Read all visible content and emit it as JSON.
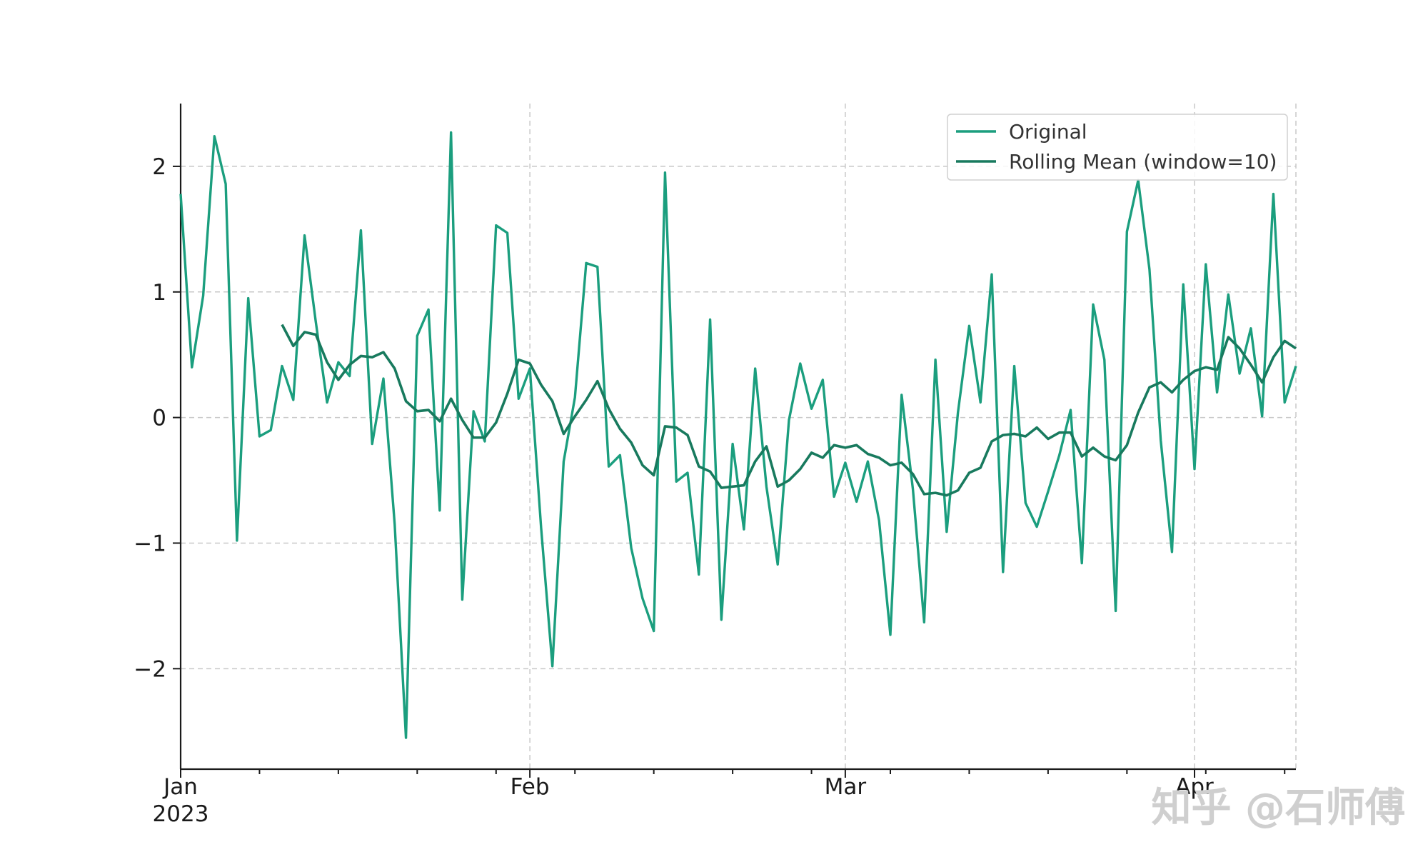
{
  "chart_data": {
    "type": "line",
    "x_start": "2023-01-01",
    "x_frequency": "daily",
    "ylim": [
      -2.8,
      2.5
    ],
    "yticks": [
      -2,
      -1,
      0,
      1,
      2
    ],
    "ytick_labels": [
      "−2",
      "−1",
      "0",
      "1",
      "2"
    ],
    "xticks": [
      {
        "date": "2023-01-01",
        "label": "Jan",
        "sublabel": "2023"
      },
      {
        "date": "2023-02-01",
        "label": "Feb",
        "sublabel": ""
      },
      {
        "date": "2023-03-01",
        "label": "Mar",
        "sublabel": ""
      },
      {
        "date": "2023-04-01",
        "label": "Apr",
        "sublabel": ""
      }
    ],
    "grid": true,
    "legend_position": "top-right",
    "colors": {
      "original": "#1b9e7e",
      "rolling": "#187a5e"
    },
    "series": [
      {
        "name": "Original",
        "values": [
          1.78,
          0.4,
          0.97,
          2.24,
          1.86,
          -0.98,
          0.95,
          -0.15,
          -0.1,
          0.41,
          0.14,
          1.45,
          0.76,
          0.12,
          0.44,
          0.33,
          1.49,
          -0.21,
          0.31,
          -0.85,
          -2.55,
          0.65,
          0.86,
          -0.74,
          2.27,
          -1.45,
          0.05,
          -0.19,
          1.53,
          1.47,
          0.15,
          0.39,
          -0.88,
          -1.98,
          -0.35,
          0.16,
          1.23,
          1.2,
          -0.39,
          -0.3,
          -1.04,
          -1.44,
          -1.7,
          1.95,
          -0.51,
          -0.44,
          -1.25,
          0.78,
          -1.61,
          -0.21,
          -0.89,
          0.39,
          -0.55,
          -1.17,
          -0.02,
          0.43,
          0.07,
          0.3,
          -0.63,
          -0.36,
          -0.67,
          -0.35,
          -0.82,
          -1.73,
          0.18,
          -0.57,
          -1.63,
          0.46,
          -0.91,
          0.04,
          0.73,
          0.12,
          1.14,
          -1.23,
          0.41,
          -0.68,
          -0.87,
          -0.59,
          -0.3,
          0.06,
          -1.16,
          0.9,
          0.46,
          -1.54,
          1.48,
          1.89,
          1.18,
          -0.18,
          -1.07,
          1.06,
          -0.41,
          1.22,
          0.2,
          0.98,
          0.35,
          0.71,
          0.01,
          1.78,
          0.12,
          0.41
        ]
      },
      {
        "name": "Rolling Mean (window=10)",
        "values": [
          null,
          null,
          null,
          null,
          null,
          null,
          null,
          null,
          null,
          0.74,
          0.57,
          0.68,
          0.66,
          0.44,
          0.3,
          0.42,
          0.49,
          0.48,
          0.52,
          0.39,
          0.13,
          0.05,
          0.06,
          -0.03,
          0.15,
          -0.02,
          -0.16,
          -0.16,
          -0.04,
          0.19,
          0.46,
          0.43,
          0.26,
          0.13,
          -0.13,
          0.01,
          0.14,
          0.29,
          0.07,
          -0.09,
          -0.2,
          -0.38,
          -0.46,
          -0.07,
          -0.08,
          -0.14,
          -0.39,
          -0.43,
          -0.56,
          -0.55,
          -0.54,
          -0.35,
          -0.23,
          -0.55,
          -0.5,
          -0.41,
          -0.28,
          -0.32,
          -0.22,
          -0.24,
          -0.22,
          -0.29,
          -0.32,
          -0.38,
          -0.36,
          -0.45,
          -0.61,
          -0.6,
          -0.62,
          -0.58,
          -0.44,
          -0.4,
          -0.19,
          -0.14,
          -0.13,
          -0.15,
          -0.08,
          -0.17,
          -0.12,
          -0.12,
          -0.31,
          -0.24,
          -0.31,
          -0.34,
          -0.22,
          0.04,
          0.24,
          0.28,
          0.2,
          0.3,
          0.37,
          0.4,
          0.38,
          0.64,
          0.55,
          0.42,
          0.28,
          0.48,
          0.61,
          0.55
        ]
      }
    ]
  },
  "watermark": "知乎 @石师傅"
}
